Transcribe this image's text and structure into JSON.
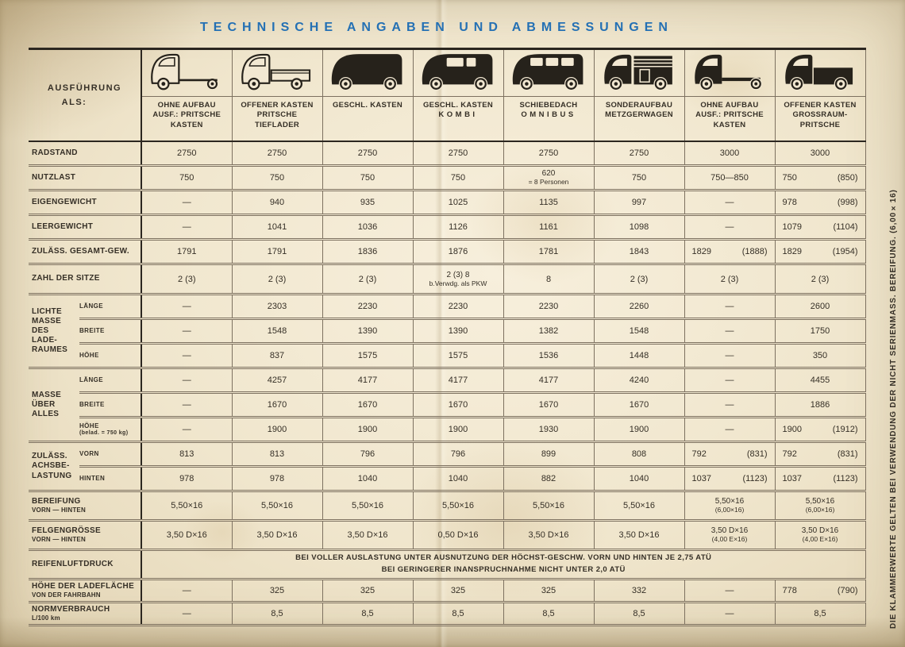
{
  "title": "TECHNISCHE ANGABEN UND ABMESSUNGEN",
  "corner": {
    "line1": "AUSFÜHRUNG",
    "line2": "ALS:"
  },
  "side_note": "DIE KLAMMERWERTE GELTEN BEI VERWENDUNG DER NICHT SERIENMASS. BEREIFUNG. (6,00×16)",
  "colors": {
    "paper": "#efe5cc",
    "ink": "#352f26",
    "title_blue": "#2470b4",
    "table_line": "#7d7160",
    "vehicle_black": "#26221b"
  },
  "columns": [
    {
      "icon": "chassis-cab-outline-icon",
      "label_lines": [
        "OHNE AUFBAU",
        "AUSF.:  PRITSCHE",
        "KASTEN"
      ]
    },
    {
      "icon": "flatbed-outline-icon",
      "label_lines": [
        "OFFENER KASTEN",
        "PRITSCHE",
        "TIEFLADER"
      ]
    },
    {
      "icon": "panel-van-icon",
      "label_lines": [
        "GESCHL. KASTEN"
      ]
    },
    {
      "icon": "kombi-van-icon",
      "label_lines": [
        "GESCHL. KASTEN",
        "KOMBI"
      ]
    },
    {
      "icon": "bus-icon",
      "label_lines": [
        "SCHIEBEDACH",
        "OMNIBUS"
      ]
    },
    {
      "icon": "stake-truck-icon",
      "label_lines": [
        "SONDERAUFBAU",
        "METZGERWAGEN"
      ]
    },
    {
      "icon": "chassis-cab-solid-icon",
      "label_lines": [
        "OHNE AUFBAU",
        "AUSF.:  PRITSCHE",
        "KASTEN"
      ]
    },
    {
      "icon": "pickup-solid-icon",
      "label_lines": [
        "OFFENER KASTEN",
        "GROSSRAUM-",
        "PRITSCHE"
      ]
    }
  ],
  "rows": [
    {
      "id": "radstand",
      "kind": "simple",
      "label_lines": [
        "RADSTAND"
      ],
      "values": [
        "2750",
        "2750",
        "2750",
        "2750",
        "2750",
        "2750",
        "3000",
        "3000"
      ]
    },
    {
      "id": "nutzlast",
      "kind": "simple",
      "label_lines": [
        "NUTZLAST"
      ],
      "values": [
        "750",
        "750",
        "750",
        "750",
        "620\n= 8 Personen",
        "750",
        "750—850",
        "750 (850)"
      ]
    },
    {
      "id": "eigengewicht",
      "kind": "simple",
      "label_lines": [
        "EIGENGEWICHT"
      ],
      "values": [
        "—",
        "940",
        "935",
        "1025",
        "1135",
        "997",
        "—",
        "978 (998)"
      ]
    },
    {
      "id": "leergewicht",
      "kind": "simple",
      "label_lines": [
        "LEERGEWICHT"
      ],
      "values": [
        "—",
        "1041",
        "1036",
        "1126",
        "1161",
        "1098",
        "—",
        "1079 (1104)"
      ]
    },
    {
      "id": "gesamtgewicht",
      "kind": "simple",
      "label_lines": [
        "ZULÄSS. GESAMT-GEW."
      ],
      "values": [
        "1791",
        "1791",
        "1836",
        "1876",
        "1781",
        "1843",
        "1829 (1888)",
        "1829 (1954)"
      ]
    },
    {
      "id": "sitze",
      "kind": "simple",
      "label_lines": [
        "ZAHL DER SITZE"
      ],
      "values": [
        "2 (3)",
        "2 (3)",
        "2 (3)",
        "2 (3) 8\nb.Verwdg. als PKW",
        "8",
        "2 (3)",
        "2 (3)",
        "2 (3)"
      ]
    },
    {
      "id": "lichte",
      "kind": "group",
      "label_lines": [
        "LICHTE",
        "MASSE",
        "DES",
        "LADE-",
        "RAUMES"
      ],
      "subrows": [
        {
          "sublabel_lines": [
            "LÄNGE"
          ],
          "values": [
            "—",
            "2303",
            "2230",
            "2230",
            "2230",
            "2260",
            "—",
            "2600"
          ]
        },
        {
          "sublabel_lines": [
            "BREITE"
          ],
          "values": [
            "—",
            "1548",
            "1390",
            "1390",
            "1382",
            "1548",
            "—",
            "1750"
          ]
        },
        {
          "sublabel_lines": [
            "HÖHE"
          ],
          "values": [
            "—",
            "837",
            "1575",
            "1575",
            "1536",
            "1448",
            "—",
            "350"
          ]
        }
      ]
    },
    {
      "id": "masse",
      "kind": "group",
      "label_lines": [
        "MASSE",
        "ÜBER",
        "ALLES"
      ],
      "subrows": [
        {
          "sublabel_lines": [
            "LÄNGE"
          ],
          "values": [
            "—",
            "4257",
            "4177",
            "4177",
            "4177",
            "4240",
            "—",
            "4455"
          ]
        },
        {
          "sublabel_lines": [
            "BREITE"
          ],
          "values": [
            "—",
            "1670",
            "1670",
            "1670",
            "1670",
            "1670",
            "—",
            "1886"
          ]
        },
        {
          "sublabel_lines": [
            "HÖHE",
            "(belad. = 750 kg)"
          ],
          "values": [
            "—",
            "1900",
            "1900",
            "1900",
            "1930",
            "1900",
            "—",
            "1900 (1912)"
          ]
        }
      ]
    },
    {
      "id": "achslast",
      "kind": "group",
      "label_lines": [
        "ZULÄSS.",
        "ACHSBE-",
        "LASTUNG"
      ],
      "subrows": [
        {
          "sublabel_lines": [
            "VORN"
          ],
          "values": [
            "813",
            "813",
            "796",
            "796",
            "899",
            "808",
            "792 (831)",
            "792 (831)"
          ]
        },
        {
          "sublabel_lines": [
            "HINTEN"
          ],
          "values": [
            "978",
            "978",
            "1040",
            "1040",
            "882",
            "1040",
            "1037 (1123)",
            "1037 (1123)"
          ]
        }
      ]
    },
    {
      "id": "bereifung",
      "kind": "simple",
      "label_lines": [
        "BEREIFUNG",
        "VORN   —   HINTEN"
      ],
      "values": [
        "5,50×16",
        "5,50×16",
        "5,50×16",
        "5,50×16",
        "5,50×16",
        "5,50×16",
        "5,50×16\n(6,00×16)",
        "5,50×16\n(6,00×16)"
      ]
    },
    {
      "id": "felgen",
      "kind": "simple",
      "label_lines": [
        "FELGENGRÖSSE",
        "VORN   —   HINTEN"
      ],
      "values": [
        "3,50 D×16",
        "3,50 D×16",
        "3,50 D×16",
        "0,50 D×16",
        "3,50 D×16",
        "3,50 D×16",
        "3,50 D×16\n(4,00 E×16)",
        "3,50 D×16\n(4,00 E×16)"
      ]
    },
    {
      "id": "reifenluftdruck",
      "kind": "span",
      "label_lines": [
        "REIFENLUFTDRUCK"
      ],
      "text_lines": [
        "BEI VOLLER AUSLASTUNG UNTER AUSNUTZUNG DER HÖCHST-GESCHW. VORN UND HINTEN JE 2,75 ATÜ",
        "BEI GERINGERER INANSPRUCHNAHME NICHT UNTER 2,0 ATÜ"
      ]
    },
    {
      "id": "ladeflaeche",
      "kind": "simple",
      "label_lines": [
        "HÖHE DER LADEFLÄCHE",
        "VON DER FAHRBAHN"
      ],
      "values": [
        "—",
        "325",
        "325",
        "325",
        "325",
        "332",
        "—",
        "778 (790)"
      ]
    },
    {
      "id": "normverbrauch",
      "kind": "simple",
      "label_lines": [
        "NORMVERBRAUCH",
        "L/100 km"
      ],
      "values": [
        "—",
        "8,5",
        "8,5",
        "8,5",
        "8,5",
        "8,5",
        "—",
        "8,5"
      ]
    }
  ]
}
